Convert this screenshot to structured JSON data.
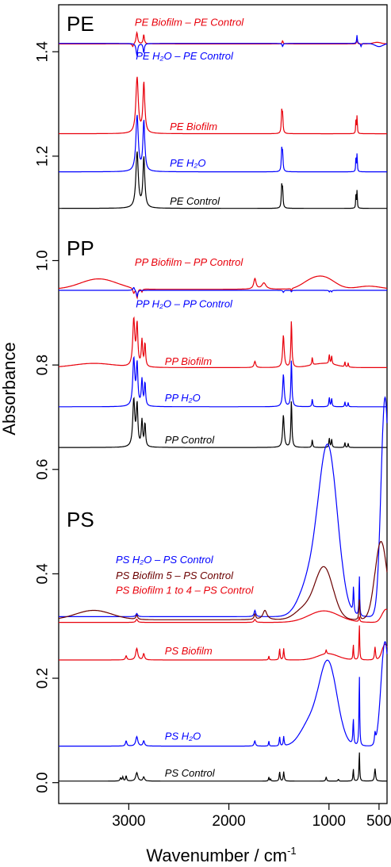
{
  "chart_data": {
    "type": "line",
    "title": "",
    "xlabel": "Wavenumber / cm",
    "xlabel_sup": "-1",
    "ylabel": "Absorbance",
    "xlim": [
      3700,
      420
    ],
    "ylim": [
      -0.04,
      1.49
    ],
    "x_reversed": true,
    "grid": false,
    "xticks": [
      3000,
      2000,
      1000,
      500
    ],
    "xtick_labels": [
      "3000",
      "2000",
      "1000",
      "500"
    ],
    "yticks": [
      0.0,
      0.2,
      0.4,
      0.6,
      0.8,
      1.0,
      1.2,
      1.4
    ],
    "ytick_labels": [
      "0.0",
      "0.2",
      "0.4",
      "0.6",
      "0.8",
      "1.0",
      "1.2",
      "1.4"
    ],
    "panel_labels": [
      {
        "text": "PE",
        "at_y": 1.44
      },
      {
        "text": "PP",
        "at_y": 1.01
      },
      {
        "text": "PS",
        "at_y": 0.49
      }
    ],
    "series": [
      {
        "name": "PE Biofilm – PE Control",
        "color": "#e8000b",
        "baseline": 1.415,
        "peaks": [
          [
            2919,
            0.022,
            9
          ],
          [
            2850,
            0.018,
            7
          ],
          [
            2960,
            -0.006,
            8
          ],
          [
            1463,
            0.006,
            6
          ],
          [
            720,
            0.01,
            4
          ]
        ],
        "bands": [
          [
            520,
            0.003,
            40
          ]
        ]
      },
      {
        "name": "PE H2O – PE Control",
        "color": "#0000ff",
        "baseline": 1.416,
        "peaks": [
          [
            2919,
            -0.022,
            9
          ],
          [
            2850,
            -0.018,
            7
          ],
          [
            1463,
            -0.006,
            6
          ],
          [
            720,
            0.016,
            4
          ],
          [
            680,
            -0.006,
            6
          ]
        ],
        "bands": [
          [
            500,
            -0.006,
            40
          ]
        ]
      },
      {
        "name": "PE Biofilm",
        "color": "#e8000b",
        "baseline": 1.243,
        "peaks": [
          [
            2917,
            0.107,
            14
          ],
          [
            2849,
            0.096,
            11
          ],
          [
            1472,
            0.04,
            5
          ],
          [
            1463,
            0.034,
            5
          ],
          [
            730,
            0.034,
            3
          ],
          [
            719,
            0.036,
            3
          ]
        ],
        "bands": []
      },
      {
        "name": "PE H2O",
        "color": "#0000ff",
        "baseline": 1.17,
        "peaks": [
          [
            2917,
            0.107,
            14
          ],
          [
            2849,
            0.096,
            11
          ],
          [
            1472,
            0.04,
            5
          ],
          [
            1463,
            0.034,
            5
          ],
          [
            730,
            0.034,
            3
          ],
          [
            719,
            0.036,
            3
          ]
        ],
        "bands": []
      },
      {
        "name": "PE Control",
        "color": "#000000",
        "baseline": 1.1,
        "peaks": [
          [
            2917,
            0.107,
            14
          ],
          [
            2849,
            0.096,
            11
          ],
          [
            1472,
            0.04,
            5
          ],
          [
            1463,
            0.034,
            5
          ],
          [
            730,
            0.034,
            3
          ],
          [
            719,
            0.036,
            3
          ]
        ],
        "bands": []
      },
      {
        "name": "PP Biofilm – PP Control",
        "color": "#e8000b",
        "baseline": 0.945,
        "peaks": [
          [
            2950,
            -0.01,
            10
          ],
          [
            2917,
            -0.018,
            8
          ],
          [
            2868,
            -0.006,
            7
          ],
          [
            1740,
            0.02,
            14
          ],
          [
            1650,
            0.012,
            25
          ],
          [
            1375,
            -0.005,
            5
          ]
        ],
        "bands": [
          [
            3300,
            0.02,
            180
          ],
          [
            1050,
            0.022,
            110
          ],
          [
            1200,
            0.01,
            90
          ],
          [
            600,
            0.006,
            120
          ]
        ]
      },
      {
        "name": "PP H2O – PP Control",
        "color": "#0000ff",
        "baseline": 0.943,
        "peaks": [
          [
            2950,
            0.006,
            10
          ],
          [
            2917,
            -0.012,
            8
          ],
          [
            1455,
            -0.004,
            6
          ],
          [
            1375,
            -0.003,
            5
          ],
          [
            997,
            -0.003,
            5
          ],
          [
            973,
            -0.003,
            5
          ]
        ],
        "bands": []
      },
      {
        "name": "PP Biofilm",
        "color": "#e8000b",
        "baseline": 0.795,
        "peaks": [
          [
            2950,
            0.09,
            12
          ],
          [
            2917,
            0.078,
            9
          ],
          [
            2868,
            0.05,
            8
          ],
          [
            2838,
            0.044,
            7
          ],
          [
            1740,
            0.012,
            10
          ],
          [
            1455,
            0.062,
            9
          ],
          [
            1375,
            0.09,
            6
          ],
          [
            1167,
            0.015,
            5
          ],
          [
            997,
            0.018,
            5
          ],
          [
            973,
            0.016,
            5
          ],
          [
            841,
            0.01,
            4
          ],
          [
            808,
            0.008,
            4
          ]
        ],
        "bands": [
          [
            3350,
            0.008,
            200
          ],
          [
            1050,
            0.008,
            120
          ]
        ]
      },
      {
        "name": "PP H2O",
        "color": "#0000ff",
        "baseline": 0.72,
        "peaks": [
          [
            2950,
            0.09,
            12
          ],
          [
            2917,
            0.078,
            9
          ],
          [
            2868,
            0.05,
            8
          ],
          [
            2838,
            0.044,
            7
          ],
          [
            1455,
            0.062,
            9
          ],
          [
            1375,
            0.09,
            6
          ],
          [
            1167,
            0.015,
            5
          ],
          [
            997,
            0.018,
            5
          ],
          [
            973,
            0.016,
            5
          ],
          [
            841,
            0.01,
            4
          ],
          [
            808,
            0.008,
            4
          ]
        ],
        "bands": []
      },
      {
        "name": "PP Control",
        "color": "#000000",
        "baseline": 0.642,
        "peaks": [
          [
            2950,
            0.09,
            12
          ],
          [
            2917,
            0.078,
            9
          ],
          [
            2868,
            0.05,
            8
          ],
          [
            2838,
            0.044,
            7
          ],
          [
            1455,
            0.062,
            9
          ],
          [
            1375,
            0.09,
            6
          ],
          [
            1167,
            0.015,
            5
          ],
          [
            997,
            0.018,
            5
          ],
          [
            973,
            0.016,
            5
          ],
          [
            841,
            0.01,
            4
          ],
          [
            808,
            0.008,
            4
          ]
        ],
        "bands": []
      },
      {
        "name": "PS H2O – PS Control",
        "color": "#0000ff",
        "baseline": 0.318,
        "peaks": [
          [
            2920,
            0.006,
            10
          ],
          [
            1740,
            0.012,
            10
          ],
          [
            697,
            0.08,
            4
          ],
          [
            755,
            0.05,
            5
          ]
        ],
        "bands": [
          [
            1010,
            0.32,
            95
          ],
          [
            1200,
            0.06,
            100
          ],
          [
            440,
            0.42,
            40
          ]
        ]
      },
      {
        "name": "PS Biofilm 5 – PS Control",
        "color": "#6b0000",
        "baseline": 0.312,
        "peaks": [
          [
            2920,
            0.008,
            10
          ],
          [
            1740,
            0.01,
            10
          ],
          [
            1640,
            0.018,
            25
          ],
          [
            697,
            0.04,
            5
          ]
        ],
        "bands": [
          [
            3350,
            0.018,
            180
          ],
          [
            1050,
            0.1,
            90
          ],
          [
            1250,
            0.02,
            90
          ],
          [
            480,
            0.15,
            60
          ]
        ]
      },
      {
        "name": "PS Biofilm 1 to 4 – PS Control",
        "color": "#e8000b",
        "baseline": 0.307,
        "peaks": [
          [
            2920,
            0.006,
            10
          ],
          [
            1740,
            0.006,
            10
          ],
          [
            697,
            0.01,
            5
          ]
        ],
        "bands": [
          [
            1050,
            0.022,
            150
          ],
          [
            430,
            0.025,
            40
          ]
        ]
      },
      {
        "name": "PS Biofilm",
        "color": "#e8000b",
        "baseline": 0.235,
        "peaks": [
          [
            3026,
            0.008,
            8
          ],
          [
            2920,
            0.022,
            12
          ],
          [
            2850,
            0.012,
            9
          ],
          [
            1601,
            0.008,
            4
          ],
          [
            1493,
            0.022,
            5
          ],
          [
            1452,
            0.022,
            5
          ],
          [
            1028,
            0.008,
            5
          ],
          [
            757,
            0.03,
            4
          ],
          [
            697,
            0.07,
            4
          ],
          [
            540,
            0.025,
            6
          ]
        ],
        "bands": [
          [
            1010,
            0.012,
            100
          ],
          [
            440,
            0.03,
            30
          ]
        ]
      },
      {
        "name": "PS H2O",
        "color": "#0000ff",
        "baseline": 0.07,
        "peaks": [
          [
            3026,
            0.01,
            8
          ],
          [
            2920,
            0.018,
            12
          ],
          [
            2850,
            0.01,
            9
          ],
          [
            1741,
            0.01,
            8
          ],
          [
            1601,
            0.01,
            4
          ],
          [
            1493,
            0.018,
            5
          ],
          [
            1452,
            0.018,
            5
          ],
          [
            757,
            0.05,
            5
          ],
          [
            697,
            0.14,
            4
          ],
          [
            540,
            0.02,
            6
          ]
        ],
        "bands": [
          [
            1010,
            0.16,
            90
          ],
          [
            1200,
            0.04,
            90
          ],
          [
            440,
            0.2,
            40
          ]
        ]
      },
      {
        "name": "PS Control",
        "color": "#000000",
        "baseline": 0.003,
        "peaks": [
          [
            3082,
            0.006,
            6
          ],
          [
            3060,
            0.008,
            6
          ],
          [
            3026,
            0.01,
            6
          ],
          [
            2920,
            0.016,
            12
          ],
          [
            2850,
            0.008,
            9
          ],
          [
            1601,
            0.008,
            4
          ],
          [
            1583,
            0.004,
            4
          ],
          [
            1493,
            0.018,
            5
          ],
          [
            1452,
            0.018,
            5
          ],
          [
            1028,
            0.008,
            5
          ],
          [
            906,
            0.004,
            4
          ],
          [
            757,
            0.024,
            4
          ],
          [
            697,
            0.058,
            4
          ],
          [
            540,
            0.024,
            6
          ]
        ],
        "bands": []
      }
    ],
    "trace_labels": [
      {
        "text": "PE Biofilm – PE Control",
        "color": "#e8000b",
        "at_x": 2940,
        "at_y": 1.45
      },
      {
        "text": "PE H₂O – PE Control",
        "color": "#0000ff",
        "at_x": 2930,
        "at_y": 1.385
      },
      {
        "text": "PE Biofilm",
        "color": "#e8000b",
        "at_x": 2590,
        "at_y": 1.25
      },
      {
        "text": "PE H₂O",
        "color": "#0000ff",
        "at_x": 2590,
        "at_y": 1.18
      },
      {
        "text": "PE Control",
        "color": "#000000",
        "at_x": 2590,
        "at_y": 1.107
      },
      {
        "text": "PP Biofilm – PP Control",
        "color": "#e8000b",
        "at_x": 2940,
        "at_y": 0.99
      },
      {
        "text": "PP H₂O – PP Control",
        "color": "#0000ff",
        "at_x": 2930,
        "at_y": 0.91
      },
      {
        "text": "PP Biofilm",
        "color": "#e8000b",
        "at_x": 2640,
        "at_y": 0.8
      },
      {
        "text": "PP H₂O",
        "color": "#0000ff",
        "at_x": 2640,
        "at_y": 0.73
      },
      {
        "text": "PP Control",
        "color": "#000000",
        "at_x": 2640,
        "at_y": 0.65
      },
      {
        "text": "PS H₂O – PS Control",
        "color": "#0000ff",
        "at_x": 3130,
        "at_y": 0.42
      },
      {
        "text": "PS Biofilm 5 – PS Control",
        "color": "#6b0000",
        "at_x": 3130,
        "at_y": 0.39
      },
      {
        "text": "PS Biofilm 1 to 4 – PS Control",
        "color": "#e8000b",
        "at_x": 3130,
        "at_y": 0.362
      },
      {
        "text": "PS Biofilm",
        "color": "#e8000b",
        "at_x": 2640,
        "at_y": 0.246
      },
      {
        "text": "PS H₂O",
        "color": "#0000ff",
        "at_x": 2640,
        "at_y": 0.082
      },
      {
        "text": "PS Control",
        "color": "#000000",
        "at_x": 2640,
        "at_y": 0.012
      }
    ]
  }
}
